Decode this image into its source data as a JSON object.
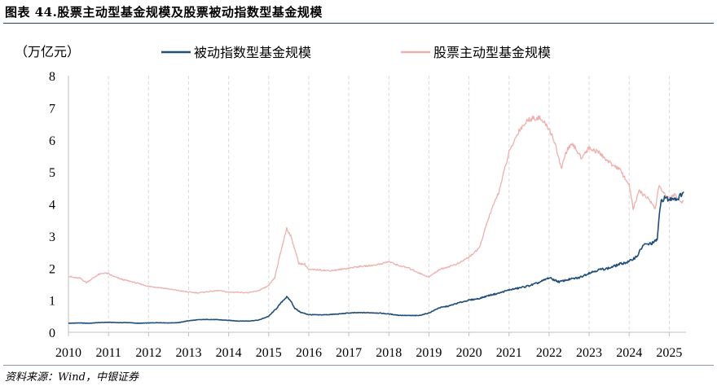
{
  "header": {
    "title": "图表 44.股票主动型基金规模及股票被动指数型基金规模"
  },
  "footer": {
    "source": "资料来源：Wind，中银证券"
  },
  "chart_data": {
    "type": "line",
    "unit_label": "（万亿元）",
    "ylim": [
      0,
      8
    ],
    "yticks": [
      0,
      1,
      2,
      3,
      4,
      5,
      6,
      7,
      8
    ],
    "xlim": [
      2010.0,
      2025.42
    ],
    "xticks": [
      "2010",
      "2011",
      "2012",
      "2013",
      "2014",
      "2015",
      "2016",
      "2017",
      "2018",
      "2019",
      "2020",
      "2021",
      "2022",
      "2023",
      "2024",
      "2025"
    ],
    "grid": "vertical-dashed",
    "legend_position": "top",
    "series": [
      {
        "name": "被动指数型基金规模",
        "color": "#1f4e79",
        "points": [
          [
            2010.0,
            0.28
          ],
          [
            2010.25,
            0.29
          ],
          [
            2010.5,
            0.28
          ],
          [
            2010.75,
            0.3
          ],
          [
            2011.0,
            0.31
          ],
          [
            2011.25,
            0.3
          ],
          [
            2011.5,
            0.3
          ],
          [
            2011.75,
            0.28
          ],
          [
            2012.0,
            0.29
          ],
          [
            2012.25,
            0.3
          ],
          [
            2012.5,
            0.29
          ],
          [
            2012.75,
            0.3
          ],
          [
            2013.0,
            0.36
          ],
          [
            2013.25,
            0.39
          ],
          [
            2013.5,
            0.4
          ],
          [
            2013.75,
            0.39
          ],
          [
            2014.0,
            0.37
          ],
          [
            2014.25,
            0.35
          ],
          [
            2014.5,
            0.35
          ],
          [
            2014.75,
            0.38
          ],
          [
            2015.0,
            0.5
          ],
          [
            2015.2,
            0.75
          ],
          [
            2015.35,
            0.98
          ],
          [
            2015.45,
            1.1
          ],
          [
            2015.55,
            0.98
          ],
          [
            2015.65,
            0.75
          ],
          [
            2015.8,
            0.62
          ],
          [
            2016.0,
            0.55
          ],
          [
            2016.25,
            0.54
          ],
          [
            2016.5,
            0.55
          ],
          [
            2016.75,
            0.57
          ],
          [
            2017.0,
            0.6
          ],
          [
            2017.25,
            0.61
          ],
          [
            2017.5,
            0.61
          ],
          [
            2017.75,
            0.6
          ],
          [
            2018.0,
            0.57
          ],
          [
            2018.25,
            0.53
          ],
          [
            2018.5,
            0.52
          ],
          [
            2018.75,
            0.52
          ],
          [
            2019.0,
            0.6
          ],
          [
            2019.25,
            0.76
          ],
          [
            2019.5,
            0.82
          ],
          [
            2019.75,
            0.92
          ],
          [
            2020.0,
            1.0
          ],
          [
            2020.25,
            1.05
          ],
          [
            2020.5,
            1.15
          ],
          [
            2020.75,
            1.22
          ],
          [
            2021.0,
            1.32
          ],
          [
            2021.25,
            1.38
          ],
          [
            2021.5,
            1.45
          ],
          [
            2021.75,
            1.55
          ],
          [
            2022.0,
            1.7
          ],
          [
            2022.25,
            1.57
          ],
          [
            2022.5,
            1.65
          ],
          [
            2022.75,
            1.7
          ],
          [
            2023.0,
            1.85
          ],
          [
            2023.25,
            1.95
          ],
          [
            2023.5,
            2.0
          ],
          [
            2023.75,
            2.12
          ],
          [
            2024.0,
            2.2
          ],
          [
            2024.2,
            2.38
          ],
          [
            2024.35,
            2.72
          ],
          [
            2024.5,
            2.75
          ],
          [
            2024.62,
            2.8
          ],
          [
            2024.7,
            2.9
          ],
          [
            2024.75,
            3.6
          ],
          [
            2024.8,
            4.1
          ],
          [
            2024.9,
            4.2
          ],
          [
            2025.0,
            4.12
          ],
          [
            2025.1,
            4.2
          ],
          [
            2025.2,
            4.15
          ],
          [
            2025.3,
            4.3
          ],
          [
            2025.36,
            4.38
          ]
        ]
      },
      {
        "name": "股票主动型基金规模",
        "color": "#eeb0ad",
        "points": [
          [
            2010.0,
            1.75
          ],
          [
            2010.15,
            1.7
          ],
          [
            2010.3,
            1.68
          ],
          [
            2010.45,
            1.55
          ],
          [
            2010.6,
            1.68
          ],
          [
            2010.75,
            1.8
          ],
          [
            2010.9,
            1.85
          ],
          [
            2011.0,
            1.82
          ],
          [
            2011.15,
            1.73
          ],
          [
            2011.3,
            1.66
          ],
          [
            2011.5,
            1.6
          ],
          [
            2011.75,
            1.52
          ],
          [
            2012.0,
            1.43
          ],
          [
            2012.25,
            1.4
          ],
          [
            2012.5,
            1.35
          ],
          [
            2012.75,
            1.3
          ],
          [
            2013.0,
            1.25
          ],
          [
            2013.25,
            1.23
          ],
          [
            2013.5,
            1.27
          ],
          [
            2013.75,
            1.3
          ],
          [
            2014.0,
            1.25
          ],
          [
            2014.25,
            1.25
          ],
          [
            2014.5,
            1.23
          ],
          [
            2014.75,
            1.3
          ],
          [
            2015.0,
            1.45
          ],
          [
            2015.15,
            1.7
          ],
          [
            2015.3,
            2.5
          ],
          [
            2015.45,
            3.25
          ],
          [
            2015.55,
            3.0
          ],
          [
            2015.65,
            2.6
          ],
          [
            2015.75,
            2.15
          ],
          [
            2015.9,
            2.12
          ],
          [
            2016.0,
            1.95
          ],
          [
            2016.25,
            1.95
          ],
          [
            2016.5,
            1.92
          ],
          [
            2016.75,
            1.95
          ],
          [
            2017.0,
            2.0
          ],
          [
            2017.25,
            2.05
          ],
          [
            2017.5,
            2.07
          ],
          [
            2017.75,
            2.12
          ],
          [
            2018.0,
            2.2
          ],
          [
            2018.25,
            2.08
          ],
          [
            2018.5,
            2.0
          ],
          [
            2018.75,
            1.85
          ],
          [
            2019.0,
            1.72
          ],
          [
            2019.25,
            1.95
          ],
          [
            2019.5,
            2.05
          ],
          [
            2019.75,
            2.15
          ],
          [
            2020.0,
            2.35
          ],
          [
            2020.25,
            2.6
          ],
          [
            2020.5,
            3.6
          ],
          [
            2020.75,
            4.4
          ],
          [
            2021.0,
            5.6
          ],
          [
            2021.25,
            6.3
          ],
          [
            2021.5,
            6.65
          ],
          [
            2021.75,
            6.7
          ],
          [
            2022.0,
            6.35
          ],
          [
            2022.15,
            5.9
          ],
          [
            2022.3,
            5.1
          ],
          [
            2022.45,
            5.7
          ],
          [
            2022.6,
            5.85
          ],
          [
            2022.8,
            5.45
          ],
          [
            2023.0,
            5.75
          ],
          [
            2023.25,
            5.6
          ],
          [
            2023.5,
            5.3
          ],
          [
            2023.75,
            5.1
          ],
          [
            2024.0,
            4.6
          ],
          [
            2024.1,
            3.85
          ],
          [
            2024.25,
            4.4
          ],
          [
            2024.5,
            4.15
          ],
          [
            2024.65,
            3.85
          ],
          [
            2024.75,
            4.6
          ],
          [
            2024.85,
            4.35
          ],
          [
            2025.0,
            4.15
          ],
          [
            2025.15,
            4.3
          ],
          [
            2025.3,
            4.05
          ],
          [
            2025.36,
            4.1
          ]
        ]
      }
    ]
  }
}
